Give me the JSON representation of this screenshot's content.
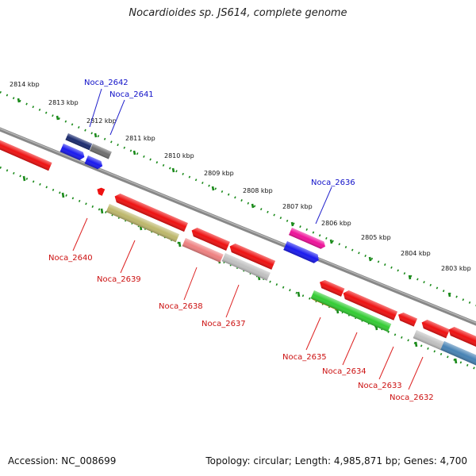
{
  "header": {
    "title": "Nocardioides sp. JS614, complete genome"
  },
  "footer": {
    "accession": "Accession: NC_008699",
    "topology": "Topology: circular; Length: 4,985,871 bp; Genes: 4,700"
  },
  "colors": {
    "backbone": "#888888",
    "tick": "#1a8a1a",
    "label_forward": "#1010c8",
    "label_reverse": "#cc1010",
    "leader_forward": "#2222cc",
    "leader_reverse": "#dd2222"
  },
  "ticks": [
    {
      "label": "2814 kbp"
    },
    {
      "label": "2813 kbp"
    },
    {
      "label": "2812 kbp"
    },
    {
      "label": "2811 kbp"
    },
    {
      "label": "2810 kbp"
    },
    {
      "label": "2809 kbp"
    },
    {
      "label": "2808 kbp"
    },
    {
      "label": "2807 kbp"
    },
    {
      "label": "2806 kbp"
    },
    {
      "label": "2805 kbp"
    },
    {
      "label": "2804 kbp"
    },
    {
      "label": "2803 kbp"
    }
  ],
  "gene_labels": {
    "noca_2642": "Noca_2642",
    "noca_2641": "Noca_2641",
    "noca_2636": "Noca_2636",
    "noca_2640": "Noca_2640",
    "noca_2639": "Noca_2639",
    "noca_2638": "Noca_2638",
    "noca_2637": "Noca_2637",
    "noca_2635": "Noca_2635",
    "noca_2634": "Noca_2634",
    "noca_2633": "Noca_2633",
    "noca_2632": "Noca_2632"
  },
  "gene_colors": {
    "red": "#ee1111",
    "blue": "#1a1aee",
    "navy": "#1a2a6e",
    "gray": "#777777",
    "magenta": "#ee1199",
    "olive": "#bdb76b",
    "salmon": "#ee8080",
    "lightgray": "#c0c0c0",
    "green": "#33cc33",
    "orange": "#ff8800",
    "steelblue": "#4682b4"
  }
}
